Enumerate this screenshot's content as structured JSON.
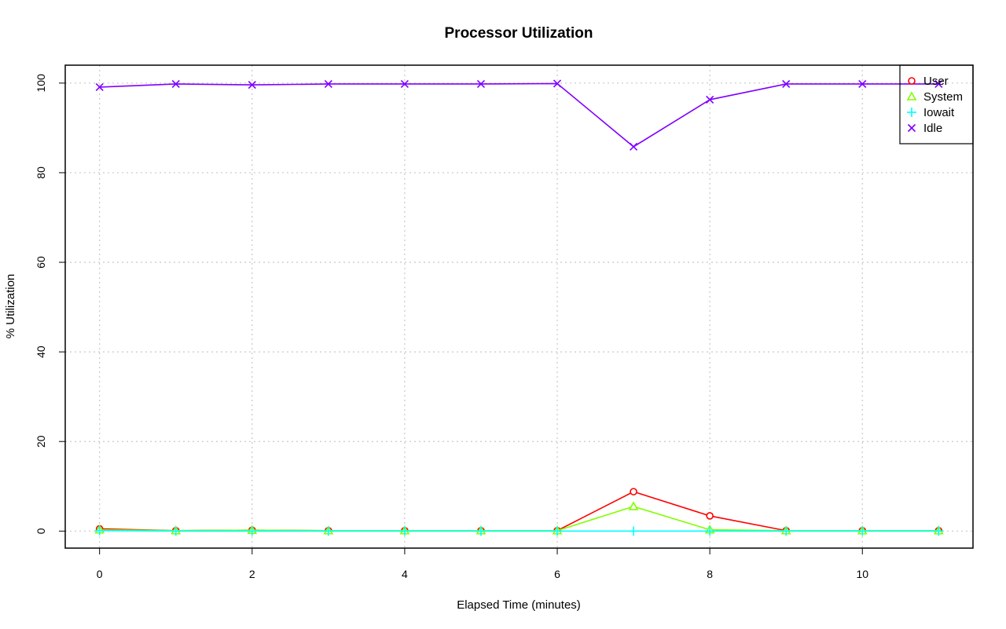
{
  "chart_data": {
    "type": "line",
    "title": "Processor Utilization",
    "xlabel": "Elapsed Time (minutes)",
    "ylabel": "% Utilization",
    "x": [
      0,
      1,
      2,
      3,
      4,
      5,
      6,
      7,
      8,
      9,
      10,
      11
    ],
    "xlim": [
      -0.45,
      11.45
    ],
    "ylim": [
      -3.8,
      104
    ],
    "xticks": [
      0,
      2,
      4,
      6,
      8,
      10
    ],
    "yticks": [
      0,
      20,
      40,
      60,
      80,
      100
    ],
    "grid": true,
    "legend_position": "top-right",
    "series": [
      {
        "name": "User",
        "color": "#ff0000",
        "marker": "circle",
        "values": [
          0.5,
          0.1,
          0.2,
          0.1,
          0.1,
          0.1,
          0.1,
          8.8,
          3.4,
          0.1,
          0.1,
          0.1
        ]
      },
      {
        "name": "System",
        "color": "#80ff00",
        "marker": "triangle",
        "values": [
          0.3,
          0.1,
          0.2,
          0.1,
          0.1,
          0.1,
          0.1,
          5.5,
          0.3,
          0.1,
          0.1,
          0.1
        ]
      },
      {
        "name": "Iowait",
        "color": "#00ffff",
        "marker": "plus",
        "values": [
          0.1,
          0.0,
          0.0,
          0.0,
          0.0,
          0.0,
          0.0,
          0.0,
          0.0,
          0.0,
          0.0,
          0.0
        ]
      },
      {
        "name": "Idle",
        "color": "#8000ff",
        "marker": "cross",
        "values": [
          99.1,
          99.8,
          99.6,
          99.8,
          99.8,
          99.8,
          99.9,
          85.8,
          96.3,
          99.8,
          99.8,
          99.8
        ]
      }
    ]
  }
}
